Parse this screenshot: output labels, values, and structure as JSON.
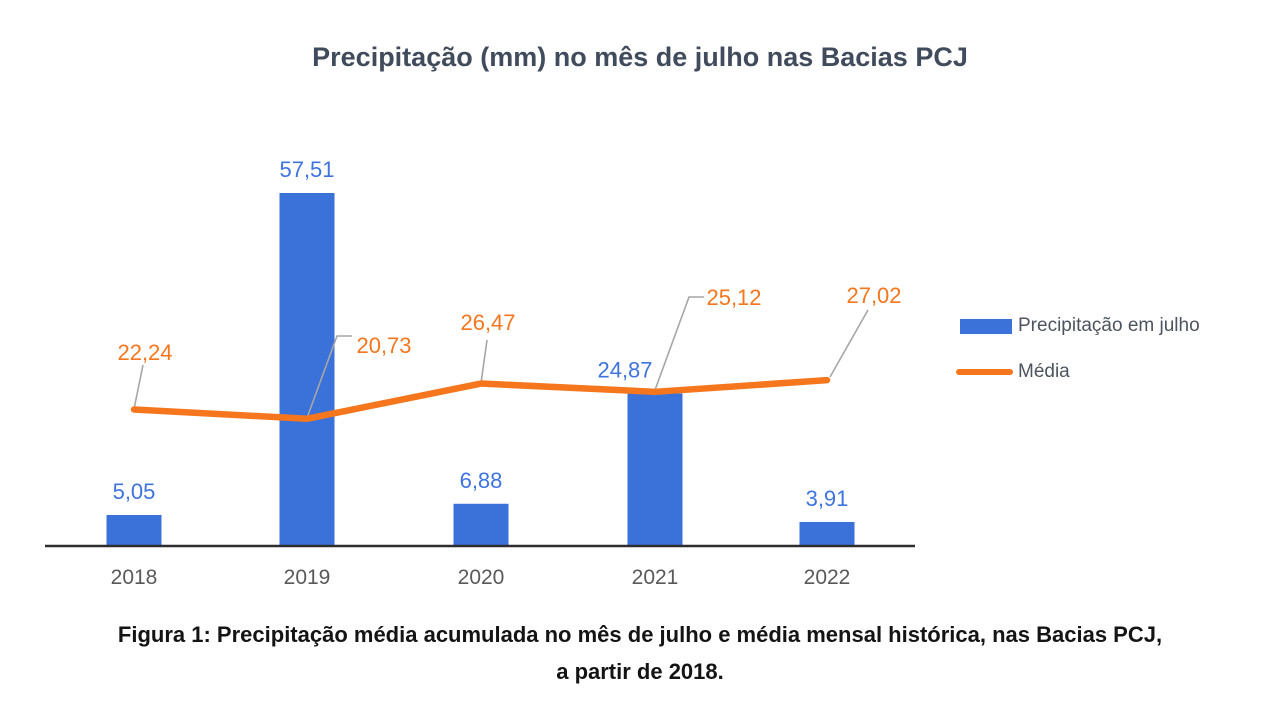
{
  "title": "Precipitação (mm) no mês de julho nas Bacias PCJ",
  "chart_data": {
    "type": "bar",
    "combo": "bar+line",
    "title": "Precipitação (mm) no mês de julho nas Bacias PCJ",
    "categories": [
      "2018",
      "2019",
      "2020",
      "2021",
      "2022"
    ],
    "series": [
      {
        "name": "Precipitação em julho",
        "type": "bar",
        "color": "#3B72DA",
        "values": [
          5.05,
          57.51,
          6.88,
          24.87,
          3.91
        ],
        "labels": [
          "5,05",
          "57,51",
          "6,88",
          "24,87",
          "3,91"
        ]
      },
      {
        "name": "Média",
        "type": "line",
        "color": "#F5761D",
        "values": [
          22.24,
          20.73,
          26.47,
          25.12,
          27.02
        ],
        "labels": [
          "22,24",
          "20,73",
          "26,47",
          "25,12",
          "27,02"
        ]
      }
    ],
    "xlabel": "",
    "ylabel": "",
    "ylim": [
      0,
      60
    ],
    "grid": false,
    "y_axis_visible": false,
    "data_labels": true,
    "legend_position": "right"
  },
  "colors": {
    "bar": "#3B72DA",
    "bar_label": "#3E74DF",
    "line": "#F5761D",
    "line_label": "#F5761D",
    "leader": "#A6A6A6",
    "axis": "#2E2E2E",
    "year_label": "#595959",
    "title": "#404B5C"
  },
  "legend": {
    "items": [
      {
        "label": "Precipitação em julho",
        "marker": "rect",
        "color": "#3B72DA"
      },
      {
        "label": "Média",
        "marker": "line",
        "color": "#F5761D"
      }
    ]
  },
  "caption": {
    "line1": "Figura 1: Precipitação média acumulada no mês de julho e média mensal histórica, nas Bacias PCJ,",
    "line2": "a partir de 2018."
  }
}
